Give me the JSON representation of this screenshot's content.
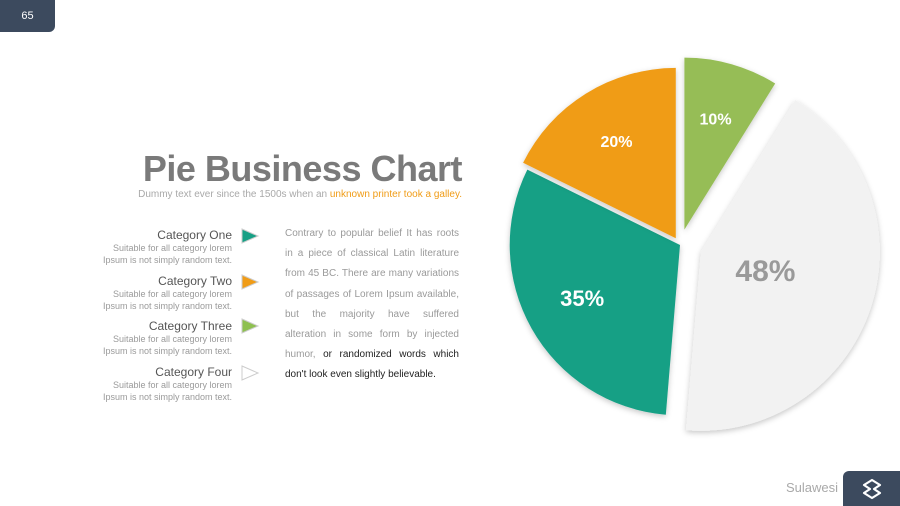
{
  "page_number": "65",
  "title": "Pie Business Chart",
  "subtitle_prefix": "Dummy text ever since the 1500s when an ",
  "subtitle_highlight": "unknown printer took a galley.",
  "categories": [
    {
      "name": "Category One",
      "desc1": "Suitable for all category  lorem",
      "desc2": "Ipsum is not simply random text.",
      "color": "#16a085"
    },
    {
      "name": "Category Two",
      "desc1": "Suitable for all category  lorem",
      "desc2": "Ipsum is not simply random text.",
      "color": "#f09c17"
    },
    {
      "name": "Category Three",
      "desc1": "Suitable for all category  lorem",
      "desc2": "Ipsum is not simply random text.",
      "color": "#8ec050"
    },
    {
      "name": "Category Four",
      "desc1": "Suitable for all category  lorem",
      "desc2": "Ipsum is not simply random text.",
      "color": "#d9d9d9"
    }
  ],
  "body_text_light": "Contrary to popular belief It has roots in a piece of classical Latin literature from 45 BC. There are many variations of passages of Lorem Ipsum available, but the majority have suffered alteration in some form by injected humor,",
  "body_text_dark": " or randomized words which don't look even slightly believable.",
  "brand": "Sulawesi",
  "chart_data": {
    "type": "pie",
    "slices": [
      {
        "label": "10%",
        "value": 10,
        "color": "#96bd56"
      },
      {
        "label": "48%",
        "value": 48,
        "color": "#f2f2f2"
      },
      {
        "label": "35%",
        "value": 35,
        "color": "#16a085"
      },
      {
        "label": "20%",
        "value": 20,
        "color": "#f09c17"
      }
    ]
  }
}
